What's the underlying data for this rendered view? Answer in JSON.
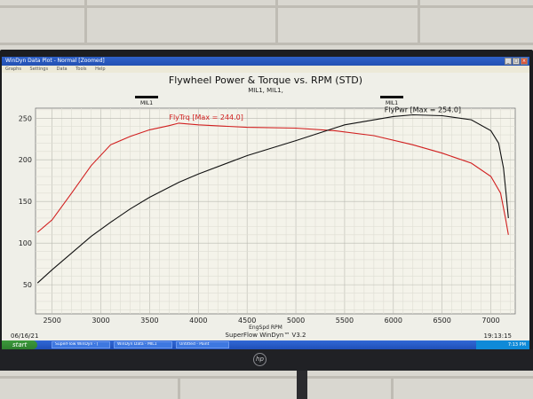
{
  "window": {
    "title": "WinDyn Data Plot - Normal  [Zoomed]",
    "menu": [
      "Graphs",
      "Settings",
      "Data",
      "Tools",
      "Help"
    ]
  },
  "chart_data": {
    "type": "line",
    "title": "Flywheel Power & Torque vs. RPM (STD)",
    "subtitle": "MIL1, MIL1,",
    "xlabel": "EngSpd RPM",
    "xlim": [
      2330,
      7250
    ],
    "ylim": [
      15,
      262
    ],
    "x_ticks": [
      2500,
      3000,
      3500,
      4000,
      4500,
      5000,
      5500,
      6000,
      6500,
      7000
    ],
    "y_ticks": [
      50,
      100,
      150,
      200,
      250
    ],
    "grid": true,
    "markers": [
      {
        "label": "MIL1",
        "x": 3520
      },
      {
        "label": "MIL1",
        "x": 6030
      }
    ],
    "series": [
      {
        "name": "FlyTrq",
        "color": "#d11f1f",
        "max_label": "FlyTrq [Max = 244.0]",
        "x": [
          2350,
          2500,
          2700,
          2900,
          3100,
          3300,
          3500,
          3700,
          3800,
          4000,
          4500,
          5000,
          5400,
          5800,
          6200,
          6500,
          6800,
          7000,
          7100,
          7150,
          7180
        ],
        "y": [
          113,
          128,
          160,
          193,
          218,
          228,
          236,
          241,
          244,
          242,
          239,
          238,
          235,
          229,
          218,
          208,
          196,
          180,
          160,
          130,
          110
        ]
      },
      {
        "name": "FlyPwr",
        "color": "#111111",
        "max_label": "FlyPwr [Max = 254.0]",
        "x": [
          2350,
          2500,
          2700,
          2900,
          3100,
          3300,
          3500,
          3800,
          4000,
          4500,
          5000,
          5500,
          6000,
          6200,
          6500,
          6800,
          7000,
          7080,
          7130,
          7160,
          7180
        ],
        "y": [
          52,
          68,
          88,
          108,
          125,
          141,
          155,
          173,
          183,
          205,
          223,
          242,
          252,
          254,
          253,
          248,
          235,
          220,
          190,
          155,
          130
        ]
      }
    ]
  },
  "footer": {
    "date": "06/16/21",
    "program": "SuperFlow WinDyn™ V3.2",
    "time": "19:13:15"
  },
  "taskbar": {
    "start": "start",
    "tasks": [
      "SuperFlow WinDyn - [",
      "WinDyn Data - MIL1",
      "Untitled - Paint"
    ],
    "clock": "7:13 PM"
  },
  "monitor": {
    "brand": "hp"
  }
}
